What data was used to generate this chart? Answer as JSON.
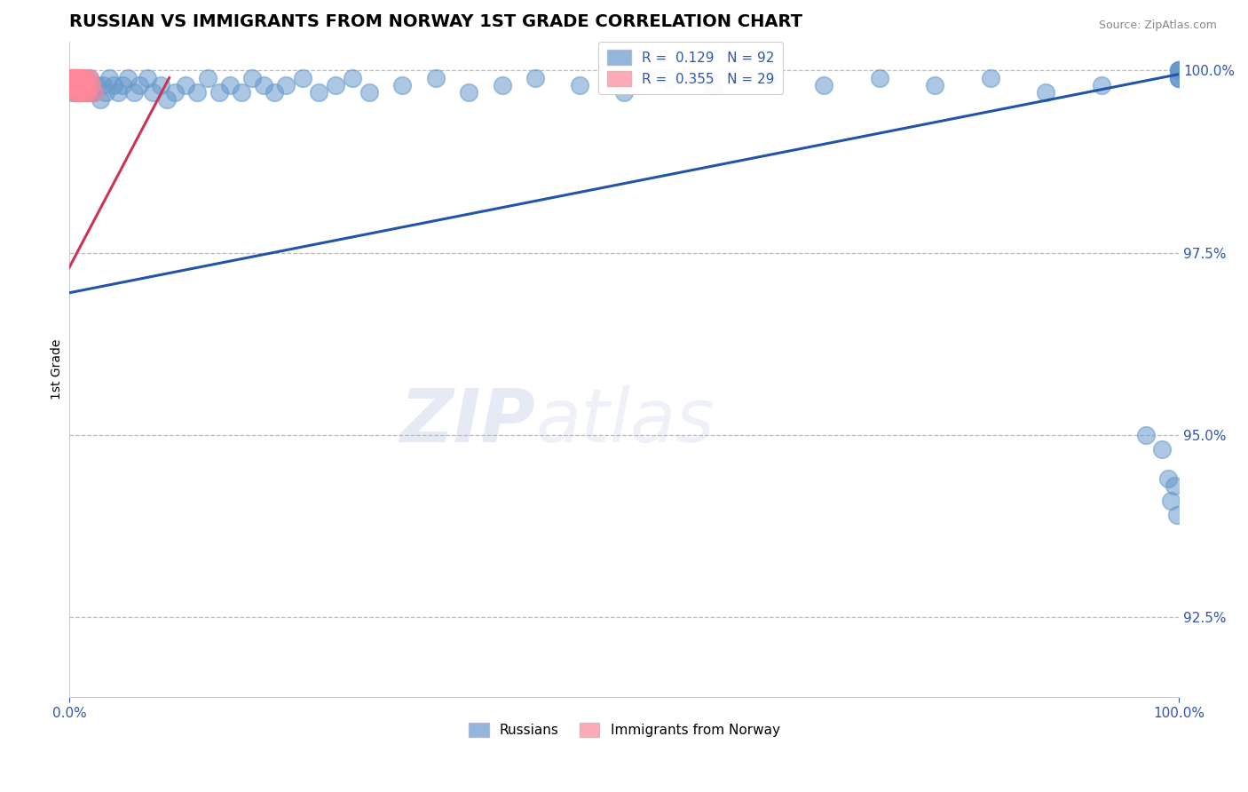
{
  "title": "RUSSIAN VS IMMIGRANTS FROM NORWAY 1ST GRADE CORRELATION CHART",
  "source": "Source: ZipAtlas.com",
  "ylabel": "1st Grade",
  "xlim": [
    0.0,
    1.0
  ],
  "ylim": [
    0.914,
    1.004
  ],
  "yticks": [
    0.925,
    0.95,
    0.975,
    1.0
  ],
  "ytick_labels": [
    "92.5%",
    "95.0%",
    "97.5%",
    "100.0%"
  ],
  "xtick_labels": [
    "0.0%",
    "100.0%"
  ],
  "blue_R": 0.129,
  "blue_N": 92,
  "pink_R": 0.355,
  "pink_N": 29,
  "blue_color": "#6699CC",
  "pink_color": "#FF8899",
  "blue_line_color": "#2255AA",
  "pink_line_color": "#CC3355",
  "legend_label_blue": "Russians",
  "legend_label_pink": "Immigrants from Norway",
  "watermark_zip": "ZIP",
  "watermark_atlas": "atlas",
  "blue_trendline_x": [
    0.0,
    1.0
  ],
  "blue_trendline_y": [
    0.9695,
    0.9995
  ],
  "pink_trendline_x": [
    0.0,
    0.09
  ],
  "pink_trendline_y": [
    0.973,
    0.999
  ],
  "blue_scatter_x": [
    0.001,
    0.002,
    0.002,
    0.003,
    0.003,
    0.003,
    0.004,
    0.004,
    0.005,
    0.005,
    0.006,
    0.006,
    0.007,
    0.007,
    0.008,
    0.008,
    0.009,
    0.009,
    0.01,
    0.01,
    0.011,
    0.012,
    0.013,
    0.014,
    0.015,
    0.016,
    0.017,
    0.018,
    0.019,
    0.02,
    0.022,
    0.025,
    0.028,
    0.03,
    0.033,
    0.036,
    0.04,
    0.044,
    0.048,
    0.053,
    0.058,
    0.063,
    0.07,
    0.075,
    0.082,
    0.088,
    0.095,
    0.105,
    0.115,
    0.125,
    0.135,
    0.145,
    0.155,
    0.165,
    0.175,
    0.185,
    0.195,
    0.21,
    0.225,
    0.24,
    0.255,
    0.27,
    0.3,
    0.33,
    0.36,
    0.39,
    0.42,
    0.46,
    0.5,
    0.54,
    0.58,
    0.63,
    0.68,
    0.73,
    0.78,
    0.83,
    0.88,
    0.93,
    0.97,
    0.985,
    0.99,
    0.993,
    0.996,
    0.998,
    1.0,
    1.0,
    1.0,
    1.0,
    1.0,
    1.0,
    1.0,
    1.0
  ],
  "blue_scatter_y": [
    0.999,
    0.999,
    0.998,
    0.999,
    0.998,
    0.997,
    0.999,
    0.998,
    0.999,
    0.997,
    0.999,
    0.998,
    0.999,
    0.998,
    0.999,
    0.997,
    0.998,
    0.999,
    0.998,
    0.997,
    0.999,
    0.998,
    0.997,
    0.999,
    0.998,
    0.997,
    0.998,
    0.999,
    0.997,
    0.998,
    0.997,
    0.998,
    0.996,
    0.998,
    0.997,
    0.999,
    0.998,
    0.997,
    0.998,
    0.999,
    0.997,
    0.998,
    0.999,
    0.997,
    0.998,
    0.996,
    0.997,
    0.998,
    0.997,
    0.999,
    0.997,
    0.998,
    0.997,
    0.999,
    0.998,
    0.997,
    0.998,
    0.999,
    0.997,
    0.998,
    0.999,
    0.997,
    0.998,
    0.999,
    0.997,
    0.998,
    0.999,
    0.998,
    0.997,
    0.999,
    0.998,
    0.999,
    0.998,
    0.999,
    0.998,
    0.999,
    0.997,
    0.998,
    0.95,
    0.948,
    0.944,
    0.941,
    0.943,
    0.939,
    0.999,
    1.0,
    1.0,
    1.0,
    1.0,
    0.999,
    0.999,
    1.0
  ],
  "pink_scatter_x": [
    0.001,
    0.002,
    0.002,
    0.003,
    0.003,
    0.004,
    0.004,
    0.005,
    0.005,
    0.006,
    0.006,
    0.007,
    0.007,
    0.008,
    0.008,
    0.009,
    0.009,
    0.01,
    0.01,
    0.011,
    0.012,
    0.013,
    0.014,
    0.015,
    0.016,
    0.017,
    0.018,
    0.02,
    0.022
  ],
  "pink_scatter_y": [
    0.999,
    0.999,
    0.998,
    0.999,
    0.998,
    0.999,
    0.998,
    0.999,
    0.997,
    0.999,
    0.998,
    0.999,
    0.997,
    0.999,
    0.998,
    0.998,
    0.997,
    0.999,
    0.998,
    0.997,
    0.999,
    0.998,
    0.997,
    0.999,
    0.998,
    0.997,
    0.999,
    0.998,
    0.997
  ]
}
